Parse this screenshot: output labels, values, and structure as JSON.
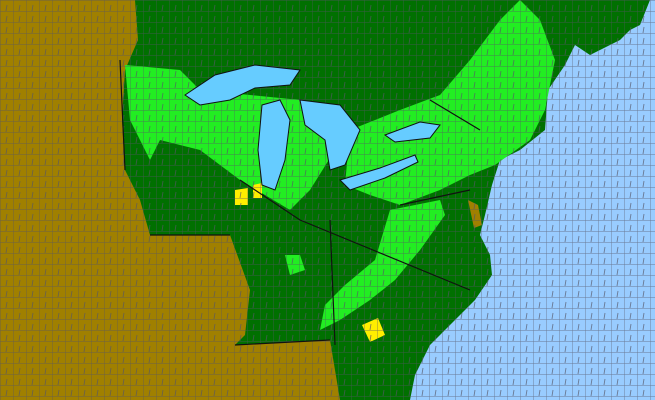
{
  "map": {
    "colors": {
      "ocean": "#99ccff",
      "lake": "#66ccff",
      "land_default": "#007000",
      "category_bright_green": "#22ee22",
      "category_yellow": "#ffee00",
      "category_brown": "#a08000",
      "county_border": "#555566",
      "state_border": "#111111"
    }
  }
}
